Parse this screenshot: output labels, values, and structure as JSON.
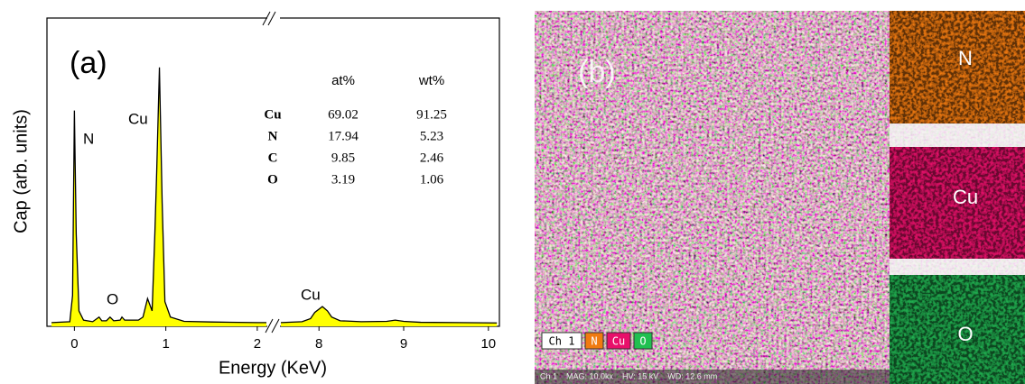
{
  "chart_data": {
    "type": "area",
    "x_label": "Energy (KeV)",
    "y_label": "Cap (arb. units)",
    "xlim": [
      -0.3,
      10.13
    ],
    "x_break": [
      2.1,
      7.55
    ],
    "ylim": [
      0,
      100
    ],
    "xticks": [
      0,
      1,
      2,
      8,
      9,
      10
    ],
    "color": "#ffff00",
    "line_color": "#000000",
    "x": [
      -0.25,
      -0.05,
      -0.02,
      0.0,
      0.02,
      0.05,
      0.1,
      0.2,
      0.27,
      0.3,
      0.35,
      0.39,
      0.43,
      0.5,
      0.52,
      0.55,
      0.6,
      0.7,
      0.75,
      0.8,
      0.85,
      0.88,
      0.9,
      0.93,
      0.96,
      0.99,
      1.05,
      1.2,
      1.5,
      2.0,
      2.1,
      null,
      7.55,
      7.8,
      7.9,
      7.95,
      8.04,
      8.1,
      8.15,
      8.25,
      8.5,
      8.8,
      8.9,
      9.0,
      9.2,
      10.1
    ],
    "values": [
      1.2,
      1.5,
      10,
      70,
      30,
      5,
      2,
      1.5,
      3,
      1.8,
      1.8,
      3,
      1.8,
      2,
      3,
      2,
      2,
      2,
      3,
      9,
      5,
      30,
      50,
      84,
      40,
      8,
      3,
      1.6,
      1.4,
      1.2,
      1.2,
      null,
      1.2,
      1.5,
      2.5,
      4.5,
      6.4,
      5,
      3,
      1.8,
      1.5,
      1.6,
      2,
      1.6,
      1.3,
      1.1
    ],
    "annotations": [
      "(a)",
      "N",
      "Cu",
      "O",
      "Cu"
    ],
    "table": {
      "columns": [
        "at%",
        "wt%"
      ],
      "rows": [
        [
          "Cu",
          69.02,
          91.25
        ],
        [
          "N",
          17.94,
          5.23
        ],
        [
          "C",
          9.85,
          2.46
        ],
        [
          "O",
          3.19,
          1.06
        ]
      ]
    }
  },
  "panel_b": {
    "label": "(b)",
    "insets": [
      "N",
      "Cu",
      "O"
    ],
    "legend": [
      "Ch 1",
      "N",
      "Cu",
      "O"
    ],
    "info": "Ch 1    MAG: 10.0kx    HV: 15 kV    WD: 12.6 mm"
  }
}
